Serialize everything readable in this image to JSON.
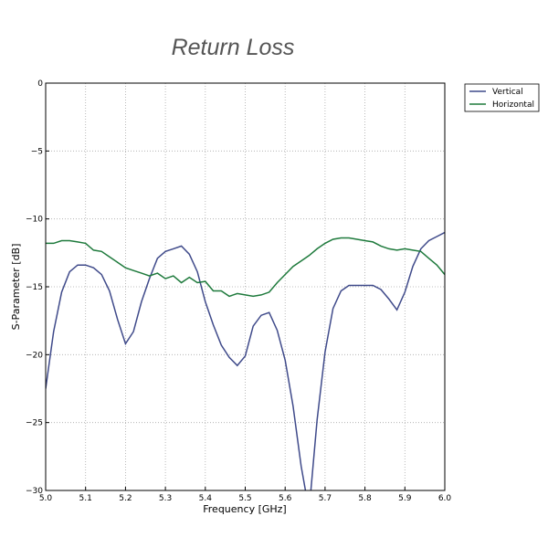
{
  "chart_data": {
    "type": "line",
    "title": "Return Loss",
    "xlabel": "Frequency [GHz]",
    "ylabel": "S-Parameter [dB]",
    "xlim": [
      5.0,
      6.0
    ],
    "ylim": [
      -30,
      0
    ],
    "xticks": [
      "5.0",
      "5.1",
      "5.2",
      "5.3",
      "5.4",
      "5.5",
      "5.6",
      "5.7",
      "5.8",
      "5.9",
      "6.0"
    ],
    "yticks": [
      "0",
      "−5",
      "−10",
      "−15",
      "−20",
      "−25",
      "−30"
    ],
    "grid": true,
    "legend_position": "outside-top-right",
    "x": [
      5.0,
      5.02,
      5.04,
      5.06,
      5.08,
      5.1,
      5.12,
      5.14,
      5.16,
      5.18,
      5.2,
      5.22,
      5.24,
      5.26,
      5.28,
      5.3,
      5.32,
      5.34,
      5.36,
      5.38,
      5.4,
      5.42,
      5.44,
      5.46,
      5.48,
      5.5,
      5.52,
      5.54,
      5.56,
      5.58,
      5.6,
      5.62,
      5.64,
      5.66,
      5.68,
      5.7,
      5.72,
      5.74,
      5.76,
      5.78,
      5.8,
      5.82,
      5.84,
      5.86,
      5.88,
      5.9,
      5.92,
      5.94,
      5.96,
      5.98,
      6.0
    ],
    "series": [
      {
        "name": "Vertical",
        "color": "#3f4a8a",
        "values": [
          -22.5,
          -18.3,
          -15.4,
          -13.9,
          -13.4,
          -13.4,
          -13.6,
          -14.1,
          -15.3,
          -17.4,
          -19.2,
          -18.3,
          -16.1,
          -14.4,
          -12.9,
          -12.4,
          -12.2,
          -12.0,
          -12.6,
          -13.9,
          -16.1,
          -17.8,
          -19.3,
          -20.2,
          -20.8,
          -20.1,
          -17.9,
          -17.1,
          -16.9,
          -18.2,
          -20.4,
          -23.8,
          -28.2,
          -31.5,
          -24.8,
          -19.8,
          -16.6,
          -15.3,
          -14.9,
          -14.9,
          -14.9,
          -14.9,
          -15.2,
          -15.9,
          -16.7,
          -15.4,
          -13.5,
          -12.2,
          -11.6,
          -11.3,
          -11.0
        ]
      },
      {
        "name": "Horizontal",
        "color": "#1e7a3c",
        "values": [
          -11.8,
          -11.8,
          -11.6,
          -11.6,
          -11.7,
          -11.8,
          -12.3,
          -12.4,
          -12.8,
          -13.2,
          -13.6,
          -13.8,
          -14.0,
          -14.2,
          -14.0,
          -14.4,
          -14.2,
          -14.7,
          -14.3,
          -14.7,
          -14.6,
          -15.3,
          -15.3,
          -15.7,
          -15.5,
          -15.6,
          -15.7,
          -15.6,
          -15.4,
          -14.7,
          -14.1,
          -13.5,
          -13.1,
          -12.7,
          -12.2,
          -11.8,
          -11.5,
          -11.4,
          -11.4,
          -11.5,
          -11.6,
          -11.7,
          -12.0,
          -12.2,
          -12.3,
          -12.2,
          -12.3,
          -12.4,
          -12.9,
          -13.4,
          -14.1
        ]
      }
    ]
  }
}
